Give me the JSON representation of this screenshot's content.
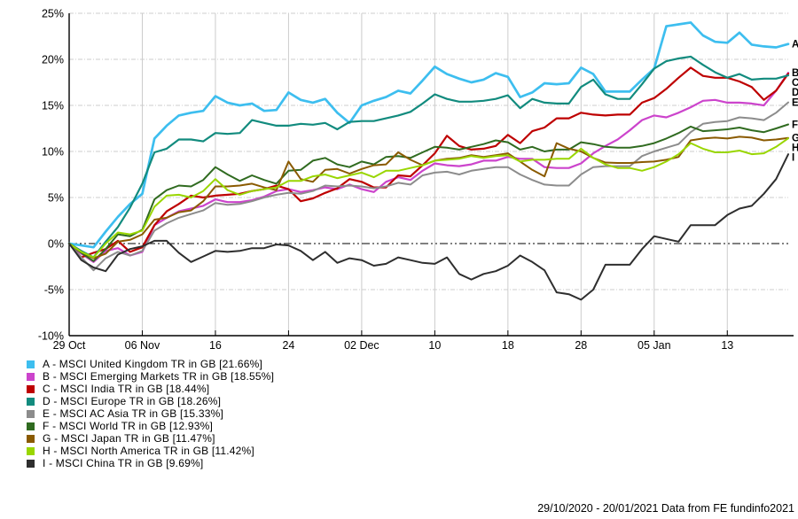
{
  "footer": {
    "text": "29/10/2020 - 20/01/2021 Data from FE fundinfo2021"
  },
  "chart_data": {
    "type": "line",
    "title": "",
    "xlabel": "",
    "ylabel": "",
    "ylim": [
      -10,
      25
    ],
    "grid": true,
    "legend_position": "bottom-left",
    "yticks": [
      {
        "label": "25%",
        "value": 25
      },
      {
        "label": "20%",
        "value": 20
      },
      {
        "label": "15%",
        "value": 15
      },
      {
        "label": "10%",
        "value": 10
      },
      {
        "label": "5%",
        "value": 5
      },
      {
        "label": "0%",
        "value": 0
      },
      {
        "label": "-5%",
        "value": -5
      },
      {
        "label": "-10%",
        "value": -10
      }
    ],
    "xticks": [
      {
        "label": "29 Oct",
        "index": 0
      },
      {
        "label": "06 Nov",
        "index": 6
      },
      {
        "label": "16",
        "index": 12
      },
      {
        "label": "24",
        "index": 18
      },
      {
        "label": "02 Dec",
        "index": 24
      },
      {
        "label": "10",
        "index": 30
      },
      {
        "label": "18",
        "index": 36
      },
      {
        "label": "28",
        "index": 42
      },
      {
        "label": "05 Jan",
        "index": 48
      },
      {
        "label": "13",
        "index": 54
      }
    ],
    "x": [
      "29 Oct",
      "30 Oct",
      "02 Nov",
      "03 Nov",
      "04 Nov",
      "05 Nov",
      "06 Nov",
      "09 Nov",
      "10 Nov",
      "11 Nov",
      "12 Nov",
      "13 Nov",
      "16 Nov",
      "17 Nov",
      "18 Nov",
      "19 Nov",
      "20 Nov",
      "23 Nov",
      "24 Nov",
      "25 Nov",
      "26 Nov",
      "27 Nov",
      "30 Nov",
      "01 Dec",
      "02 Dec",
      "03 Dec",
      "04 Dec",
      "07 Dec",
      "08 Dec",
      "09 Dec",
      "10 Dec",
      "11 Dec",
      "14 Dec",
      "15 Dec",
      "16 Dec",
      "17 Dec",
      "18 Dec",
      "21 Dec",
      "22 Dec",
      "23 Dec",
      "24 Dec",
      "25 Dec",
      "28 Dec",
      "29 Dec",
      "30 Dec",
      "31 Dec",
      "01 Jan",
      "04 Jan",
      "05 Jan",
      "06 Jan",
      "07 Jan",
      "08 Jan",
      "11 Jan",
      "12 Jan",
      "13 Jan",
      "14 Jan",
      "15 Jan",
      "18 Jan",
      "19 Jan",
      "20 Jan"
    ],
    "series": [
      {
        "letter": "A",
        "name": "MSCI United Kingdom TR in GB",
        "final": "21.66%",
        "color": "#3dbeef",
        "width": 2.7,
        "values": [
          0,
          -0.2,
          -0.4,
          1.3,
          2.9,
          4.3,
          5.4,
          11.4,
          12.8,
          13.9,
          14.2,
          14.4,
          16.0,
          15.3,
          15.0,
          15.2,
          14.4,
          14.5,
          16.4,
          15.6,
          15.3,
          15.7,
          14.2,
          13.1,
          15.0,
          15.5,
          15.9,
          16.6,
          16.3,
          17.7,
          19.2,
          18.4,
          17.9,
          17.5,
          17.8,
          18.5,
          18.1,
          15.9,
          16.4,
          17.4,
          17.3,
          17.4,
          19.1,
          18.4,
          16.5,
          16.5,
          16.5,
          17.8,
          19.0,
          23.6,
          23.8,
          24.0,
          22.6,
          21.9,
          21.8,
          22.9,
          21.6,
          21.4,
          21.3,
          21.66
        ]
      },
      {
        "letter": "B",
        "name": "MSCI Emerging Markets TR in GB",
        "final": "18.55%",
        "color": "#cc44cc",
        "width": 2.2,
        "values": [
          0,
          -1.1,
          -2.0,
          -0.8,
          -0.5,
          -1.3,
          -0.9,
          2.0,
          2.8,
          3.5,
          3.8,
          4.1,
          4.8,
          4.5,
          4.5,
          4.7,
          5.1,
          5.7,
          5.9,
          5.6,
          5.8,
          6.1,
          5.9,
          6.4,
          5.9,
          5.6,
          6.7,
          7.2,
          6.9,
          7.9,
          8.7,
          8.5,
          8.4,
          8.6,
          9.0,
          9.0,
          9.4,
          9.2,
          9.2,
          8.3,
          8.2,
          8.2,
          8.7,
          9.8,
          10.6,
          11.3,
          12.3,
          13.4,
          13.9,
          13.7,
          14.2,
          14.8,
          15.5,
          15.6,
          15.3,
          15.3,
          15.2,
          15.0,
          16.6,
          18.55
        ]
      },
      {
        "letter": "C",
        "name": "MSCI India TR in GB",
        "final": "18.44%",
        "color": "#be0000",
        "width": 2.2,
        "values": [
          0,
          -1.5,
          -1.0,
          -0.6,
          0.3,
          -0.9,
          -0.4,
          2.0,
          3.5,
          4.3,
          5.2,
          5.0,
          5.2,
          5.3,
          5.4,
          5.7,
          5.9,
          6.3,
          5.9,
          4.6,
          4.9,
          5.5,
          6.0,
          7.0,
          6.7,
          6.1,
          6.1,
          7.4,
          7.3,
          8.5,
          9.8,
          11.7,
          10.6,
          10.2,
          10.3,
          10.6,
          11.8,
          10.9,
          12.2,
          12.6,
          13.6,
          13.6,
          14.2,
          14.0,
          13.9,
          14.0,
          14.0,
          15.3,
          15.8,
          16.8,
          18.0,
          19.1,
          18.2,
          18.0,
          18.0,
          17.6,
          17.0,
          15.6,
          16.6,
          18.44
        ]
      },
      {
        "letter": "D",
        "name": "MSCI Europe TR in GB",
        "final": "18.26%",
        "color": "#128b7e",
        "width": 2.2,
        "values": [
          0,
          -0.8,
          -1.5,
          0.2,
          1.8,
          3.9,
          6.5,
          9.9,
          10.3,
          11.3,
          11.3,
          11.1,
          12.0,
          11.9,
          12.0,
          13.4,
          13.1,
          12.8,
          12.8,
          13.0,
          12.9,
          13.1,
          12.4,
          13.2,
          13.3,
          13.3,
          13.6,
          13.9,
          14.3,
          15.2,
          16.2,
          15.7,
          15.4,
          15.4,
          15.5,
          15.7,
          16.1,
          14.7,
          15.7,
          15.3,
          15.2,
          15.2,
          17.0,
          17.8,
          16.2,
          15.7,
          15.7,
          17.3,
          19.0,
          19.8,
          20.1,
          20.3,
          19.4,
          18.6,
          18.0,
          18.4,
          17.8,
          17.9,
          17.9,
          18.26
        ]
      },
      {
        "letter": "E",
        "name": "MSCI AC Asia TR in GB",
        "final": "15.33%",
        "color": "#8c8c8c",
        "width": 2.0,
        "values": [
          0,
          -1.5,
          -2.9,
          -1.6,
          -0.9,
          -1.3,
          -0.8,
          1.4,
          2.2,
          2.8,
          3.2,
          3.6,
          4.4,
          4.2,
          4.3,
          4.6,
          5.0,
          5.3,
          5.5,
          5.4,
          5.7,
          6.3,
          6.2,
          6.3,
          6.2,
          6.0,
          6.2,
          6.6,
          6.4,
          7.4,
          7.7,
          7.8,
          7.5,
          7.9,
          8.1,
          8.3,
          8.3,
          7.5,
          6.9,
          6.4,
          6.3,
          6.3,
          7.5,
          8.3,
          8.4,
          8.4,
          8.4,
          9.5,
          10.0,
          10.4,
          10.8,
          12.1,
          13.0,
          13.2,
          13.3,
          13.7,
          13.6,
          13.4,
          14.2,
          15.33
        ]
      },
      {
        "letter": "F",
        "name": "MSCI World TR in GB",
        "final": "12.93%",
        "color": "#306b20",
        "width": 2.0,
        "values": [
          0,
          -1.0,
          -1.9,
          -0.6,
          1.0,
          0.8,
          1.5,
          4.8,
          5.8,
          6.3,
          6.2,
          6.9,
          8.3,
          7.5,
          6.8,
          7.4,
          6.9,
          6.5,
          7.9,
          8.0,
          9.0,
          9.3,
          8.6,
          8.3,
          8.9,
          8.6,
          9.4,
          9.5,
          9.3,
          9.9,
          10.5,
          10.4,
          10.2,
          10.5,
          10.8,
          11.2,
          11.0,
          10.2,
          10.5,
          10.0,
          10.2,
          10.2,
          11.0,
          10.8,
          10.5,
          10.4,
          10.4,
          10.6,
          10.9,
          11.4,
          12.0,
          12.7,
          12.2,
          12.3,
          12.4,
          12.6,
          12.3,
          12.1,
          12.5,
          12.93
        ]
      },
      {
        "letter": "G",
        "name": "MSCI Japan TR in GB",
        "final": "11.47%",
        "color": "#8a5a00",
        "width": 2.0,
        "values": [
          0,
          -0.9,
          -1.6,
          -1.1,
          0.2,
          0.4,
          1.0,
          2.6,
          2.8,
          3.4,
          3.6,
          4.6,
          6.2,
          6.2,
          6.3,
          6.5,
          6.1,
          5.8,
          8.9,
          7.0,
          6.7,
          8.0,
          8.1,
          7.6,
          8.1,
          8.5,
          8.6,
          9.9,
          9.1,
          8.5,
          9.0,
          9.2,
          9.3,
          9.6,
          9.4,
          9.6,
          9.8,
          8.9,
          8.0,
          7.3,
          10.9,
          10.3,
          10.0,
          9.3,
          8.8,
          8.75,
          8.75,
          8.85,
          8.9,
          9.1,
          9.4,
          11.2,
          11.4,
          11.5,
          11.4,
          11.6,
          11.5,
          11.2,
          11.3,
          11.47
        ]
      },
      {
        "letter": "H",
        "name": "MSCI North America TR in GB",
        "final": "11.42%",
        "color": "#99d600",
        "width": 2.0,
        "values": [
          0,
          -0.9,
          -1.5,
          0.0,
          1.2,
          1.0,
          1.4,
          4.0,
          5.2,
          5.3,
          5.0,
          5.7,
          7.0,
          5.8,
          5.3,
          5.7,
          5.9,
          6.1,
          6.8,
          6.8,
          7.3,
          7.5,
          7.1,
          7.4,
          7.7,
          7.2,
          7.9,
          7.9,
          8.2,
          8.5,
          9.0,
          9.1,
          9.2,
          9.5,
          9.3,
          9.5,
          9.6,
          8.9,
          9.1,
          9.1,
          9.2,
          9.2,
          10.3,
          9.3,
          8.6,
          8.2,
          8.2,
          7.9,
          8.3,
          8.9,
          9.7,
          10.9,
          10.3,
          9.9,
          9.9,
          10.1,
          9.7,
          9.8,
          10.5,
          11.42
        ]
      },
      {
        "letter": "I",
        "name": "MSCI China TR in GB",
        "final": "9.69%",
        "color": "#2e2e2e",
        "width": 2.0,
        "values": [
          0,
          -1.8,
          -2.6,
          -3.0,
          -1.2,
          -0.6,
          -0.3,
          0.3,
          0.3,
          -1.0,
          -2.0,
          -1.4,
          -0.8,
          -0.9,
          -0.8,
          -0.5,
          -0.5,
          -0.1,
          -0.2,
          -0.8,
          -1.8,
          -0.9,
          -2.1,
          -1.6,
          -1.8,
          -2.4,
          -2.2,
          -1.5,
          -1.8,
          -2.1,
          -2.2,
          -1.5,
          -3.3,
          -3.9,
          -3.3,
          -3.0,
          -2.4,
          -1.3,
          -2.0,
          -2.9,
          -5.3,
          -5.5,
          -6.1,
          -5.0,
          -2.3,
          -2.3,
          -2.3,
          -0.6,
          0.8,
          0.5,
          0.2,
          2.0,
          2.0,
          2.0,
          3.1,
          3.8,
          4.1,
          5.4,
          7.0,
          9.69
        ]
      }
    ]
  },
  "legend": {
    "items": [
      {
        "label": "A - MSCI United Kingdom TR in GB [21.66%]",
        "color": "#3dbeef"
      },
      {
        "label": "B - MSCI Emerging Markets TR in GB [18.55%]",
        "color": "#cc44cc"
      },
      {
        "label": "C - MSCI India TR in GB [18.44%]",
        "color": "#be0000"
      },
      {
        "label": "D - MSCI Europe TR in GB [18.26%]",
        "color": "#128b7e"
      },
      {
        "label": "E - MSCI AC Asia TR in GB [15.33%]",
        "color": "#8c8c8c"
      },
      {
        "label": "F - MSCI World TR in GB [12.93%]",
        "color": "#306b20"
      },
      {
        "label": "G - MSCI Japan TR in GB [11.47%]",
        "color": "#8a5a00"
      },
      {
        "label": "H - MSCI North America TR in GB [11.42%]",
        "color": "#99d600"
      },
      {
        "label": "I - MSCI China TR in GB [9.69%]",
        "color": "#2e2e2e"
      }
    ]
  }
}
